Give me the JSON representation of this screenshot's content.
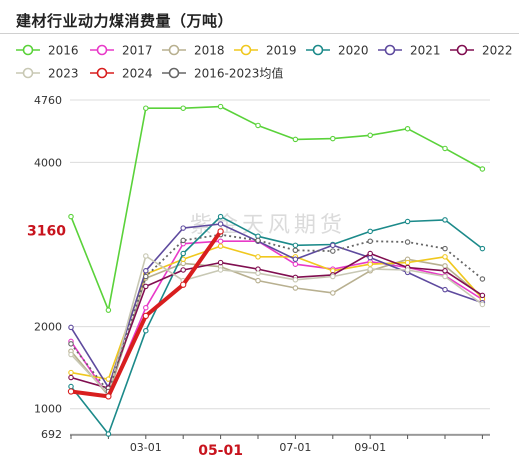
{
  "chart_data": {
    "type": "line",
    "title": "建材行业动力煤消费量（万吨）",
    "x_ticks": [
      "03-01",
      "05-01",
      "07-01",
      "09-01"
    ],
    "x_highlight_tick": "05-01",
    "y_ticks": [
      692,
      1000,
      2000,
      3160,
      4000,
      4760
    ],
    "y_highlight_tick": 3160,
    "ylim": [
      692,
      4760
    ],
    "grid": "horizontal",
    "legend_position": "top",
    "watermark": "紫金天风期货",
    "series": [
      {
        "name": "2016",
        "color": "#5ad23a",
        "values": [
          3340,
          2200,
          4660,
          4660,
          4680,
          4450,
          4280,
          4290,
          4330,
          4410,
          4170,
          3920
        ]
      },
      {
        "name": "2017",
        "color": "#e83ac8",
        "values": [
          1820,
          1150,
          2230,
          3010,
          3040,
          3040,
          2760,
          2700,
          2790,
          2720,
          2620,
          2330
        ]
      },
      {
        "name": "2018",
        "color": "#b8b090",
        "values": [
          1700,
          1160,
          2590,
          2770,
          2730,
          2560,
          2470,
          2410,
          2680,
          2820,
          2740,
          2360
        ]
      },
      {
        "name": "2019",
        "color": "#f0c81e",
        "values": [
          1440,
          1360,
          2640,
          2820,
          2980,
          2850,
          2850,
          2680,
          2760,
          2780,
          2850,
          2340
        ]
      },
      {
        "name": "2020",
        "color": "#1c8a8a",
        "values": [
          1270,
          692,
          1950,
          2890,
          3340,
          3100,
          2990,
          3000,
          3160,
          3280,
          3300,
          2950
        ]
      },
      {
        "name": "2021",
        "color": "#5e4a9e",
        "values": [
          1990,
          1260,
          2680,
          3200,
          3250,
          3040,
          2820,
          2990,
          2840,
          2660,
          2450,
          2290
        ]
      },
      {
        "name": "2022",
        "color": "#800e50",
        "values": [
          1380,
          1250,
          2490,
          2690,
          2780,
          2700,
          2600,
          2630,
          2890,
          2720,
          2680,
          2380
        ]
      },
      {
        "name": "2023",
        "color": "#c8c8b4",
        "values": [
          1660,
          1180,
          2860,
          2560,
          2690,
          2650,
          2570,
          2610,
          2700,
          2690,
          2610,
          2270
        ]
      },
      {
        "name": "2024",
        "color": "#d81e1e",
        "values": [
          1210,
          1150,
          2130,
          2510,
          3160
        ]
      },
      {
        "name": "2016-2023均值",
        "color": "#666666",
        "dashed": true,
        "values": [
          1790,
          1210,
          2610,
          3050,
          3120,
          3050,
          2930,
          2920,
          3040,
          3030,
          2950,
          2580
        ]
      }
    ]
  }
}
